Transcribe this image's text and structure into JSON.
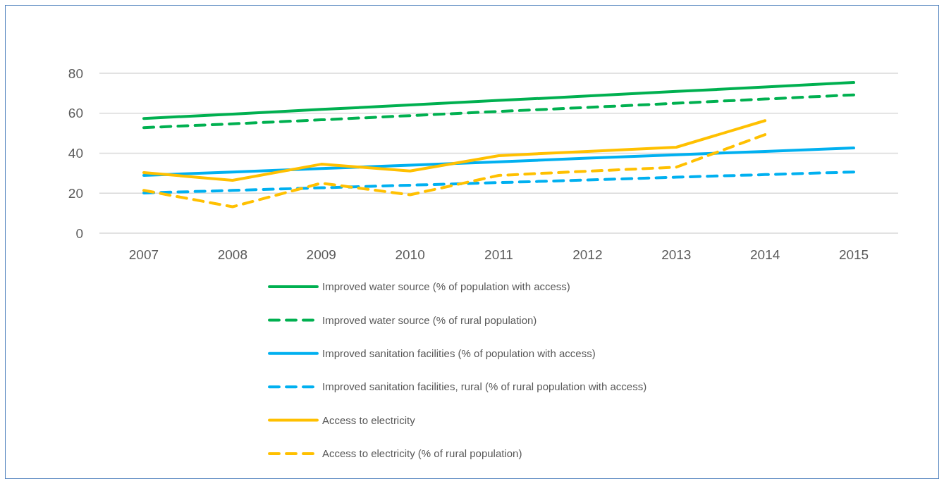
{
  "chart_data": {
    "type": "line",
    "categories": [
      "2007",
      "2008",
      "2009",
      "2010",
      "2011",
      "2012",
      "2013",
      "2014",
      "2015"
    ],
    "series": [
      {
        "name": "Improved water source (% of population with access)",
        "color": "#00b050",
        "line_style": "solid",
        "values": [
          57.4,
          59.6,
          61.9,
          64.1,
          66.4,
          68.6,
          70.9,
          73.1,
          75.4
        ]
      },
      {
        "name": "Improved water source (% of rural population)",
        "color": "#00b050",
        "line_style": "dashed",
        "values": [
          52.8,
          54.7,
          56.7,
          58.8,
          60.9,
          62.9,
          65.0,
          67.1,
          69.2
        ]
      },
      {
        "name": "Improved sanitation facilities (% of population with access)",
        "color": "#00b0f0",
        "line_style": "solid",
        "values": [
          28.9,
          30.6,
          32.3,
          34.0,
          35.7,
          37.5,
          39.2,
          40.9,
          42.6
        ]
      },
      {
        "name": "Improved sanitation facilities, rural (% of rural population with access)",
        "color": "#00b0f0",
        "line_style": "dashed",
        "values": [
          20.1,
          21.4,
          22.7,
          24.0,
          25.3,
          26.6,
          28.0,
          29.3,
          30.6
        ]
      },
      {
        "name": "Access to electricity",
        "color": "#ffc000",
        "line_style": "solid",
        "values": [
          30.3,
          26.4,
          34.5,
          31.1,
          38.8,
          40.9,
          43.0,
          56.3,
          null
        ]
      },
      {
        "name": "Access to electricity (% of rural population)",
        "color": "#ffc000",
        "line_style": "dashed",
        "values": [
          21.4,
          13.2,
          25.0,
          19.2,
          28.9,
          31.0,
          33.0,
          49.3,
          null
        ]
      }
    ],
    "ylim": [
      0,
      80
    ],
    "yticks": [
      0,
      20,
      40,
      60,
      80
    ],
    "grid": "y",
    "legend": "bottom",
    "marker": "none"
  }
}
